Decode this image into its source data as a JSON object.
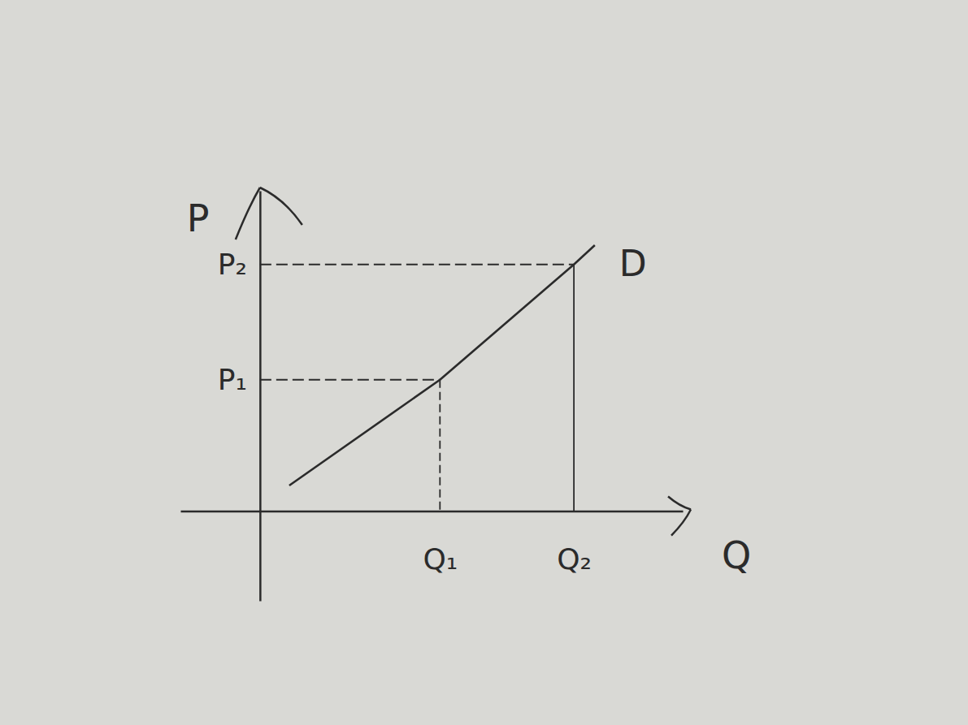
{
  "chart_data": {
    "type": "line",
    "x_label": "Q",
    "y_label": "P",
    "x": [
      0.7,
      4.3,
      7.5,
      8.0
    ],
    "series": [
      {
        "name": "D",
        "color": "#2b2b2b",
        "values": [
          0.8,
          4.1,
          7.7,
          8.3
        ]
      }
    ],
    "xlim": [
      -1.9,
      10.1
    ],
    "ylim": [
      -2.8,
      10
    ],
    "xticks": [
      {
        "value": 4.3,
        "label": "Q₁"
      },
      {
        "value": 7.5,
        "label": "Q₂"
      }
    ],
    "yticks": [
      {
        "value": 4.1,
        "label": "P₁"
      },
      {
        "value": 7.7,
        "label": "P₂"
      }
    ],
    "grid": false
  }
}
